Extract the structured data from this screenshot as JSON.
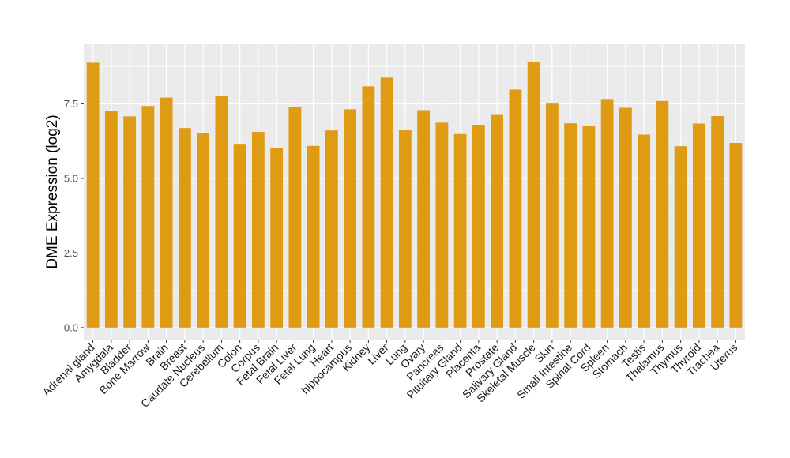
{
  "chart_data": {
    "type": "bar",
    "ylabel": "DME Expression (log2)",
    "xlabel": "",
    "ylim": [
      -0.4,
      9.5
    ],
    "yticks": [
      0.0,
      2.5,
      5.0,
      7.5
    ],
    "ytick_labels": [
      "0.0",
      "2.5",
      "5.0",
      "7.5"
    ],
    "grid": true,
    "bar_color": "#E09B15",
    "panel_color": "#EBEBEB",
    "categories": [
      "Adrenal gland",
      "Amygdala",
      "Bladder",
      "Bone Marrow",
      "Brain",
      "Breast",
      "Caudate Nucleus",
      "Cerebellum",
      "Colon",
      "Corpus",
      "Fetal Brain",
      "Fetal Liver",
      "Fetal Lung",
      "Heart",
      "hippocampus",
      "Kidney",
      "Liver",
      "Lung",
      "Ovary",
      "Pancreas",
      "Pituitary Gland",
      "Placenta",
      "Prostate",
      "Salivary Gland",
      "Skeletal Muscle",
      "Skin",
      "Small Intestine",
      "Spinal Cord",
      "Spleen",
      "Stomach",
      "Testis",
      "Thalamus",
      "Thymus",
      "Thyroid",
      "Trachea",
      "Uterus"
    ],
    "values": [
      8.88,
      7.27,
      7.08,
      7.43,
      7.71,
      6.69,
      6.53,
      7.78,
      6.16,
      6.56,
      6.02,
      7.41,
      6.09,
      6.61,
      7.32,
      8.09,
      8.38,
      6.63,
      7.29,
      6.87,
      6.49,
      6.8,
      7.13,
      7.98,
      8.9,
      7.51,
      6.85,
      6.77,
      7.64,
      7.37,
      6.47,
      7.6,
      6.08,
      6.84,
      7.09,
      6.19
    ]
  }
}
